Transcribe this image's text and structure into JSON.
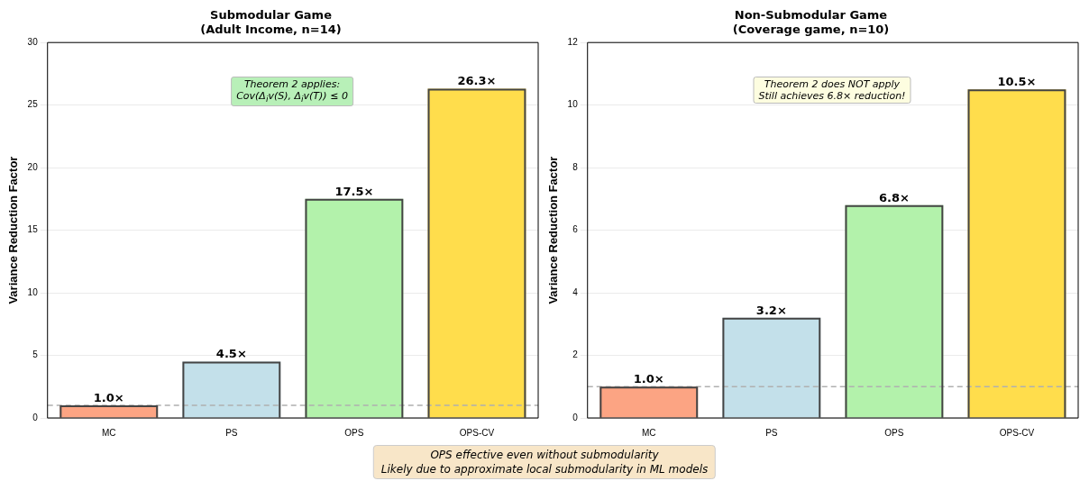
{
  "chart_data": [
    {
      "type": "bar",
      "title": "Submodular Game",
      "subtitle": "(Adult Income, n=14)",
      "ylabel": "Variance Reduction Factor",
      "categories": [
        "MC",
        "PS",
        "OPS",
        "OPS-CV"
      ],
      "values": [
        1.0,
        4.5,
        17.5,
        26.3
      ],
      "colors": [
        "#fca483",
        "#c3e0ea",
        "#b3f2ab",
        "#ffdd4c"
      ],
      "value_labels": [
        "1.0×",
        "4.5×",
        "17.5×",
        "26.3×"
      ],
      "ylim": [
        0,
        30
      ],
      "yticks": [
        0,
        5,
        10,
        15,
        20,
        25,
        30
      ],
      "grid": "y",
      "ref_lines": [
        {
          "axis": "y",
          "value": 1,
          "color": "#b0b0b0",
          "line_style": "dashed"
        }
      ],
      "annotations": [
        "Theorem 2 applies:\nCov(Δ$_{i}$v(S), Δ$_{i}$v(T)) ≤ 0",
        "OPS effective even without submodularity\nLikely due to approximate local submodularity in ML models"
      ]
    },
    {
      "type": "bar",
      "title": "Non-Submodular Game",
      "subtitle": "(Coverage game, n=10)",
      "ylabel": "Variance Reduction Factor",
      "categories": [
        "MC",
        "PS",
        "OPS",
        "OPS-CV"
      ],
      "values": [
        1.0,
        3.2,
        6.8,
        10.5
      ],
      "colors": [
        "#fca483",
        "#c3e0ea",
        "#b3f2ab",
        "#ffdd4c"
      ],
      "value_labels": [
        "1.0×",
        "3.2×",
        "6.8×",
        "10.5×"
      ],
      "ylim": [
        0,
        12
      ],
      "yticks": [
        0,
        2,
        4,
        6,
        8,
        10,
        12
      ],
      "grid": "y",
      "ref_lines": [
        {
          "axis": "y",
          "value": 1,
          "color": "#b0b0b0",
          "line_style": "dashed"
        }
      ],
      "annotations": [
        "Theorem 2 does NOT apply\nStill achieves 6.8× reduction!"
      ]
    }
  ]
}
